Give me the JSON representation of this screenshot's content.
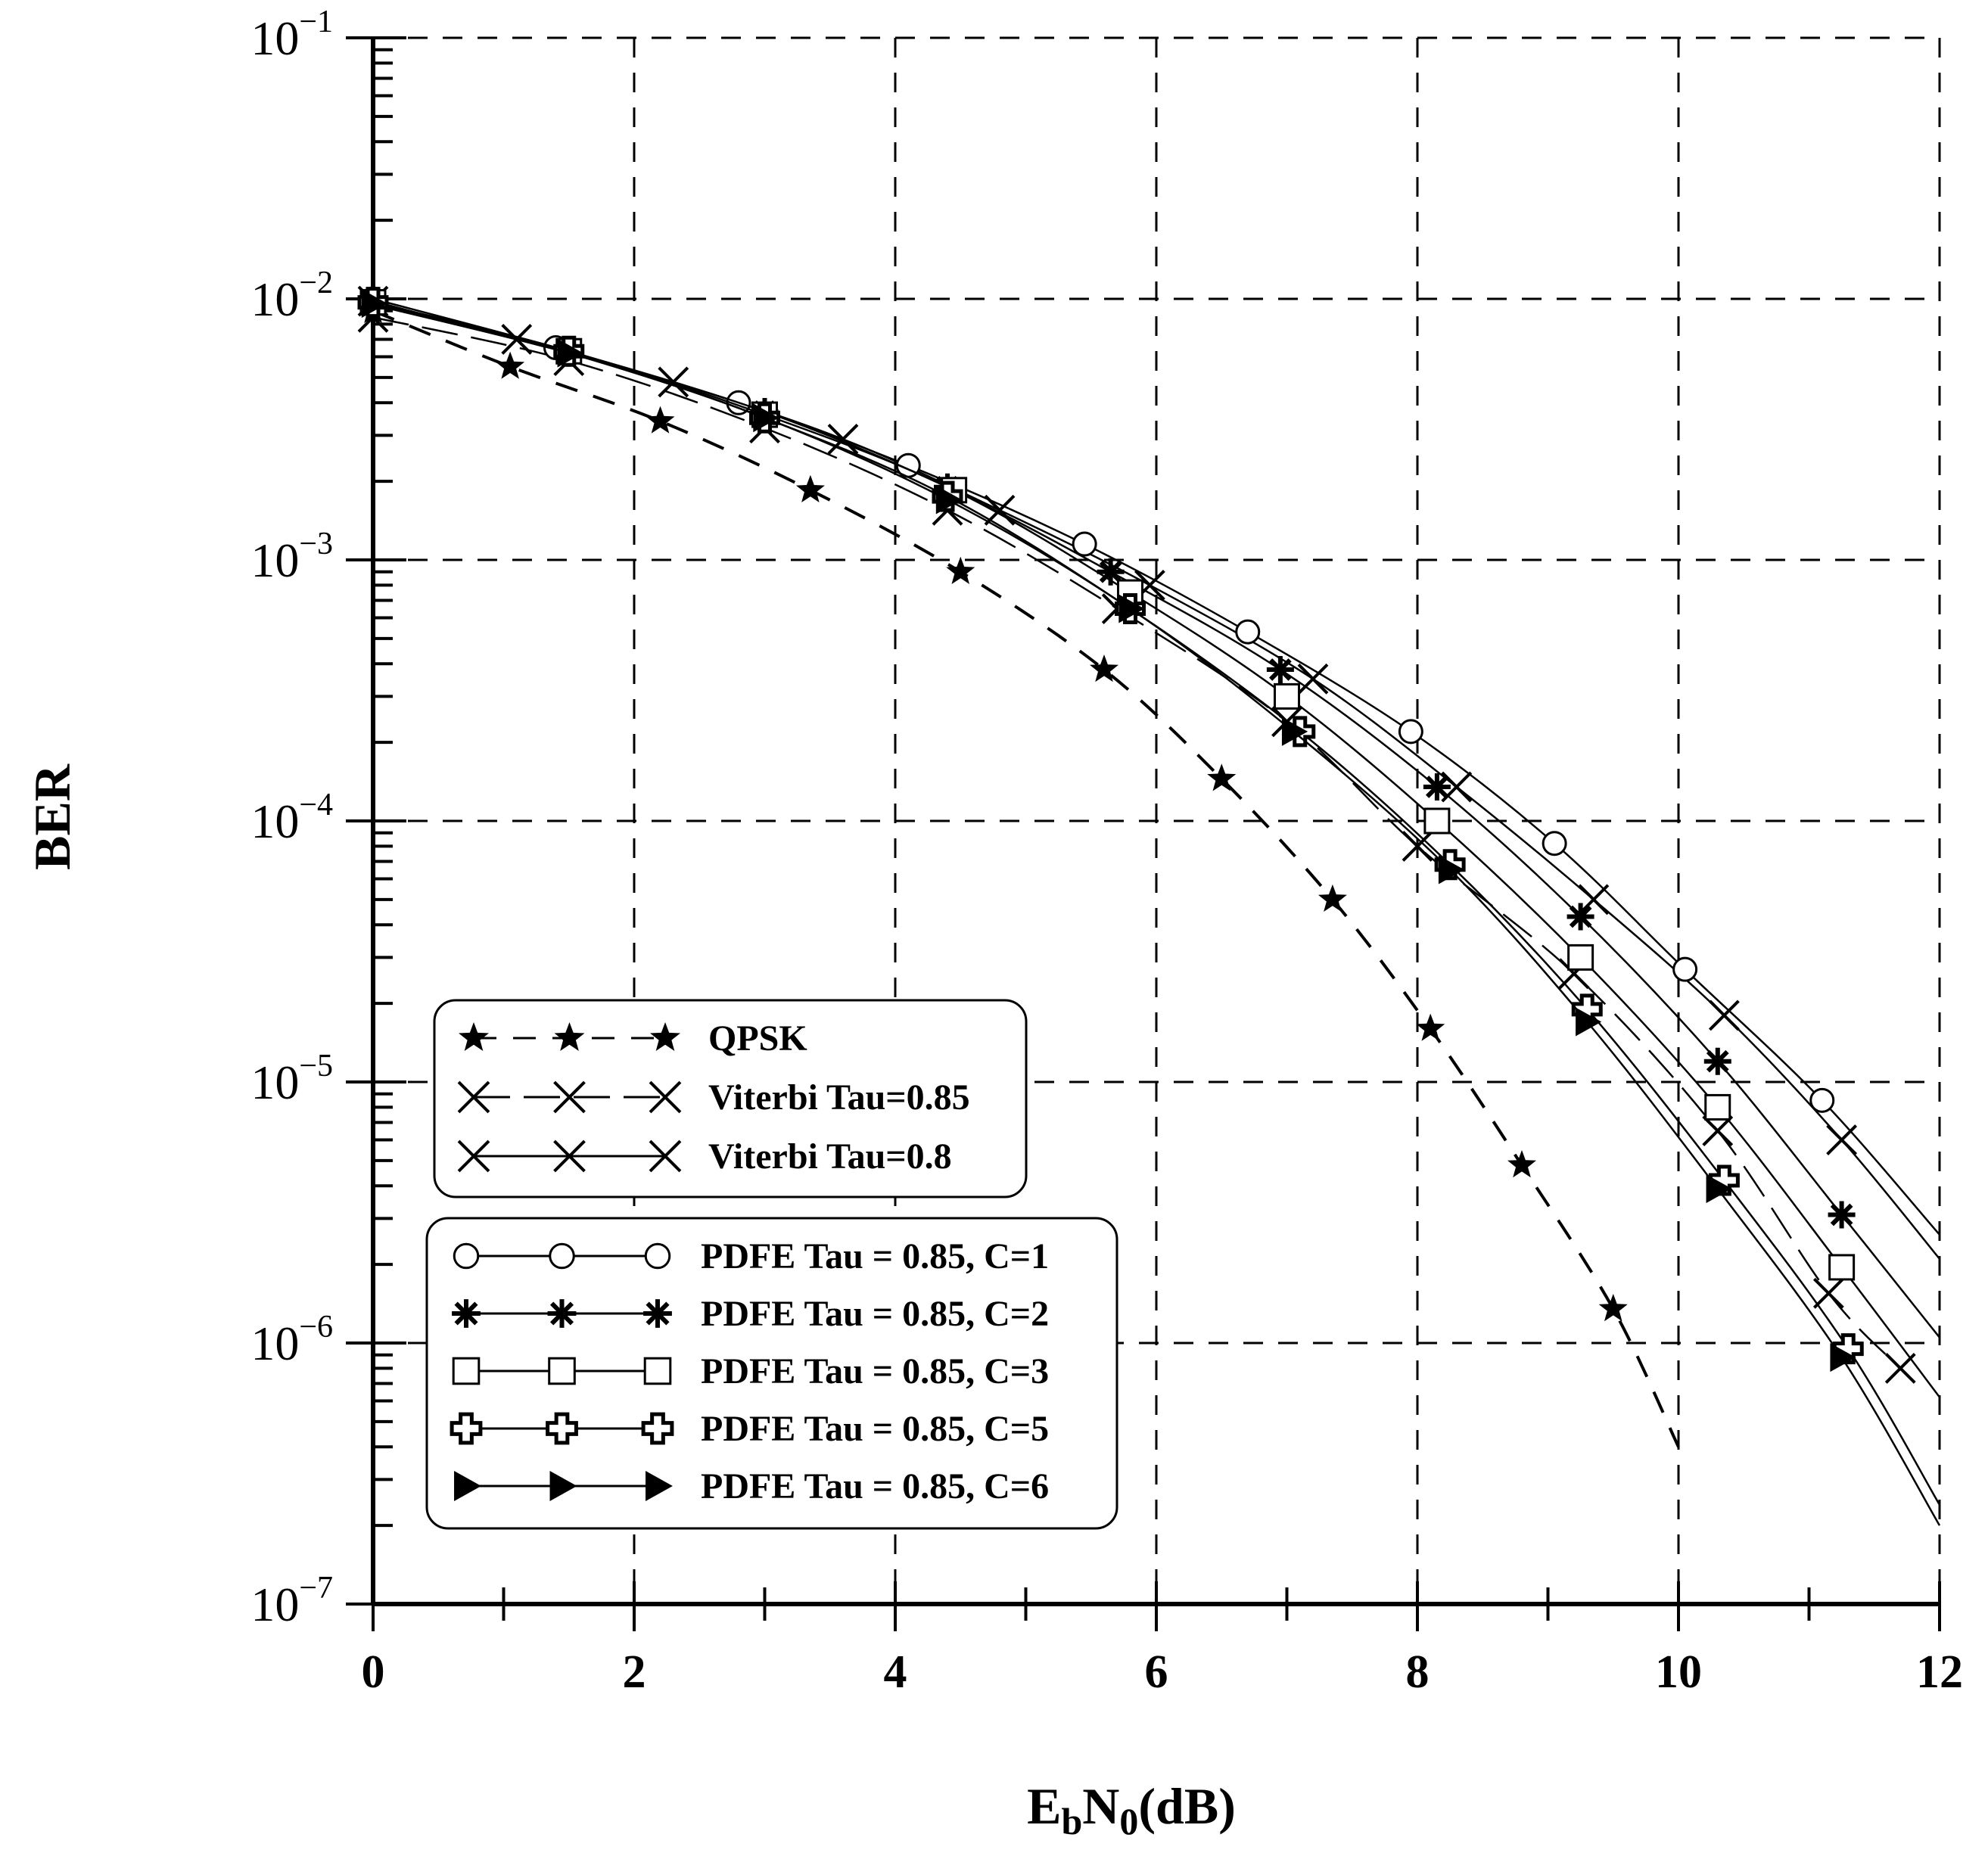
{
  "chart_data": {
    "type": "line",
    "title": "",
    "xlabel": "E_bN_0(dB)",
    "xlabel_parts": {
      "e": "E",
      "b": "b",
      "n": "N",
      "zero": "0",
      "rest": "(dB)"
    },
    "ylabel": "BER",
    "xlim": [
      0,
      12
    ],
    "ylim": [
      1e-07,
      0.1
    ],
    "yscale": "log",
    "grid": true,
    "x_ticks": [
      "0",
      "2",
      "4",
      "6",
      "8",
      "10",
      "12"
    ],
    "y_ticks": [
      {
        "base": "10",
        "exp": "−1",
        "value": 0.1
      },
      {
        "base": "10",
        "exp": "−2",
        "value": 0.01
      },
      {
        "base": "10",
        "exp": "−3",
        "value": 0.001
      },
      {
        "base": "10",
        "exp": "−4",
        "value": 0.0001
      },
      {
        "base": "10",
        "exp": "−5",
        "value": 1e-05
      },
      {
        "base": "10",
        "exp": "−6",
        "value": 1e-06
      },
      {
        "base": "10",
        "exp": "−7",
        "value": 1e-07
      }
    ],
    "legend_groups": [
      [
        "QPSK",
        "Viterbi Tau=0.85",
        "Viterbi Tau=0.8"
      ],
      [
        "PDFE Tau = 0.85, C=1",
        "PDFE Tau = 0.85, C=2",
        "PDFE Tau = 0.85, C=3",
        "PDFE Tau = 0.85, C=5",
        "PDFE Tau = 0.85, C=6"
      ]
    ],
    "series": [
      {
        "name": "QPSK",
        "marker": "star",
        "dash": "dashed",
        "x": [
          0,
          1.05,
          2.2,
          3.35,
          4.5,
          5.6,
          6.5,
          7.35,
          8.1,
          8.8,
          9.5,
          10.0
        ],
        "y": [
          0.009,
          0.0055,
          0.0034,
          0.00185,
          0.0009,
          0.00038,
          0.000145,
          5e-05,
          1.6e-05,
          4.8e-06,
          1.35e-06,
          4e-07
        ]
      },
      {
        "name": "Viterbi Tau=0.85",
        "marker": "x",
        "dash": "longdash",
        "x": [
          0,
          1.5,
          3.0,
          4.4,
          5.7,
          7.0,
          8.0,
          9.2,
          10.3,
          11.15,
          11.7
        ],
        "y": [
          0.0085,
          0.0058,
          0.0032,
          0.00155,
          0.00065,
          0.00024,
          8e-05,
          2.6e-05,
          6.5e-06,
          1.55e-06,
          8e-07
        ]
      },
      {
        "name": "Viterbi Tau=0.8",
        "marker": "x",
        "dash": "solid",
        "x": [
          0,
          1.1,
          2.3,
          3.6,
          4.8,
          5.95,
          7.2,
          8.3,
          9.35,
          10.35,
          11.25,
          12.0
        ],
        "y": [
          0.0098,
          0.007,
          0.0048,
          0.0029,
          0.00155,
          0.0008,
          0.00035,
          0.000135,
          5e-05,
          1.8e-05,
          6e-06,
          2.1e-06
        ]
      },
      {
        "name": "PDFE Tau = 0.85, C=1",
        "marker": "circle",
        "dash": "solid",
        "x": [
          0,
          1.4,
          2.8,
          4.1,
          5.45,
          6.7,
          7.95,
          9.05,
          10.05,
          11.1,
          12.0
        ],
        "y": [
          0.01,
          0.0065,
          0.004,
          0.0023,
          0.00115,
          0.00053,
          0.00022,
          8.2e-05,
          2.7e-05,
          8.5e-06,
          2.6e-06
        ]
      },
      {
        "name": "PDFE Tau = 0.85, C=2",
        "marker": "asterisk",
        "dash": "solid",
        "x": [
          0,
          1.5,
          3.0,
          4.4,
          5.65,
          6.95,
          8.15,
          9.25,
          10.3,
          11.25,
          12.0
        ],
        "y": [
          0.0095,
          0.0062,
          0.0037,
          0.0019,
          0.0009,
          0.00038,
          0.000135,
          4.3e-05,
          1.2e-05,
          3.1e-06,
          1.05e-06
        ]
      },
      {
        "name": "PDFE Tau = 0.85, C=3",
        "marker": "square",
        "dash": "solid",
        "x": [
          0,
          1.5,
          3.0,
          4.45,
          5.8,
          7.0,
          8.15,
          9.25,
          10.3,
          11.25,
          12.0
        ],
        "y": [
          0.0097,
          0.0063,
          0.0036,
          0.00185,
          0.00075,
          0.0003,
          0.0001,
          3e-05,
          8e-06,
          1.95e-06,
          6.2e-07
        ]
      },
      {
        "name": "PDFE Tau = 0.85, C=5",
        "marker": "cross",
        "dash": "solid",
        "x": [
          0,
          1.5,
          3.0,
          4.4,
          5.8,
          7.1,
          8.25,
          9.3,
          10.35,
          11.3,
          12.0
        ],
        "y": [
          0.0097,
          0.0063,
          0.0035,
          0.00175,
          0.00065,
          0.00022,
          6.8e-05,
          1.9e-05,
          4.2e-06,
          9.5e-07,
          2.4e-07
        ]
      },
      {
        "name": "PDFE Tau = 0.85, C=6",
        "marker": "triangle",
        "dash": "solid",
        "x": [
          0,
          1.5,
          3.0,
          4.4,
          5.8,
          7.05,
          8.25,
          9.3,
          10.3,
          11.25,
          12.0
        ],
        "y": [
          0.0096,
          0.0062,
          0.0035,
          0.0017,
          0.00065,
          0.00022,
          6.5e-05,
          1.7e-05,
          3.9e-06,
          8.8e-07,
          2e-07
        ]
      }
    ]
  }
}
